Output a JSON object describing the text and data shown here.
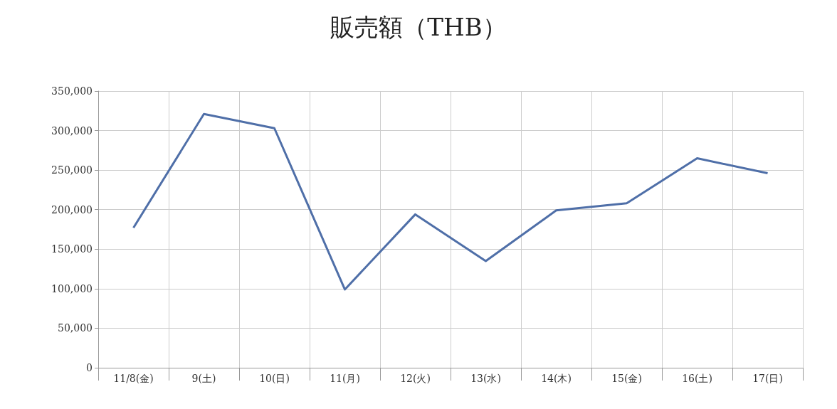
{
  "chart_data": {
    "type": "line",
    "title": "販売額（THB）",
    "categories": [
      "11/8(金)",
      "9(土)",
      "10(日)",
      "11(月)",
      "12(火)",
      "13(水)",
      "14(木)",
      "15(金)",
      "16(土)",
      "17(日)"
    ],
    "series": [
      {
        "color": "#4f6fa8",
        "values": [
          177000,
          321000,
          303000,
          99000,
          194000,
          135000,
          199000,
          208000,
          265000,
          246000
        ]
      }
    ],
    "ylim": [
      0,
      350000
    ],
    "yticks": [
      {
        "value": 0,
        "label": "0"
      },
      {
        "value": 50000,
        "label": "50,000"
      },
      {
        "value": 100000,
        "label": "100,000"
      },
      {
        "value": 150000,
        "label": "150,000"
      },
      {
        "value": 200000,
        "label": "200,000"
      },
      {
        "value": 250000,
        "label": "250,000"
      },
      {
        "value": 300000,
        "label": "300,000"
      },
      {
        "value": 350000,
        "label": "350,000"
      }
    ],
    "grid": true,
    "marker": "none",
    "line_style": "solid"
  }
}
